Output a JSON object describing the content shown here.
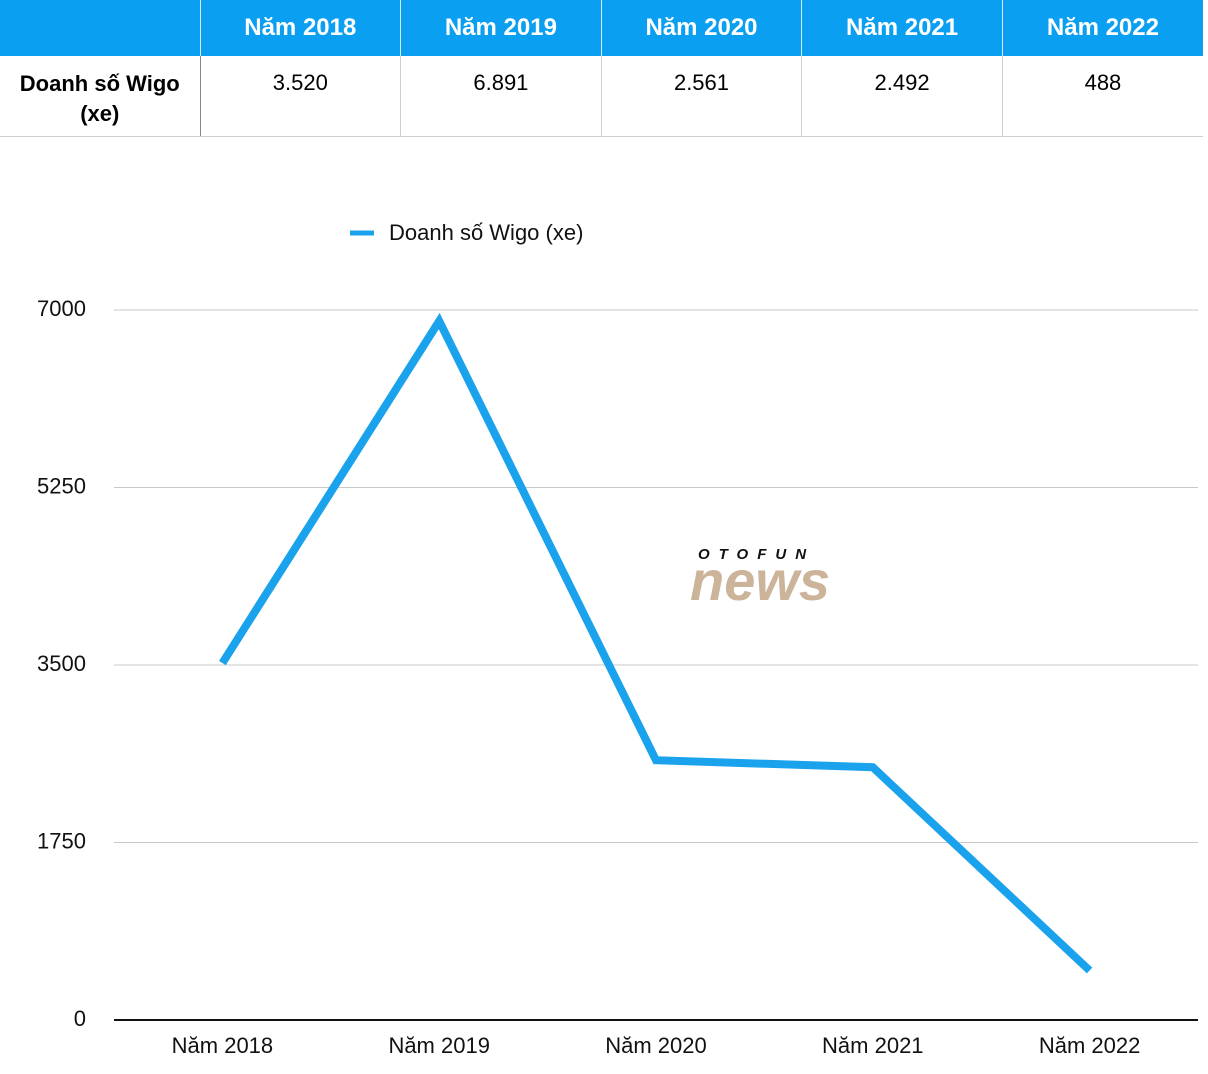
{
  "table": {
    "header": [
      "Năm 2018",
      "Năm 2019",
      "Năm 2020",
      "Năm 2021",
      "Năm 2022"
    ],
    "rows": [
      [
        "Doanh số Wigo (xe)",
        "3.520",
        "6.891",
        "2.561",
        "2.492",
        "488"
      ]
    ]
  },
  "watermark": {
    "top": "OTOFUN",
    "main": "news"
  },
  "chart_data": {
    "type": "line",
    "categories": [
      "Năm 2018",
      "Năm 2019",
      "Năm 2020",
      "Năm 2021",
      "Năm 2022"
    ],
    "series": [
      {
        "name": "Doanh số Wigo (xe)",
        "color": "#1aa3ec",
        "values": [
          3520,
          6891,
          2561,
          2492,
          488
        ]
      }
    ],
    "ylim": [
      0,
      7000
    ],
    "yticks": [
      0,
      1750,
      3500,
      5250,
      7000
    ],
    "grid": true,
    "legend": "top"
  }
}
